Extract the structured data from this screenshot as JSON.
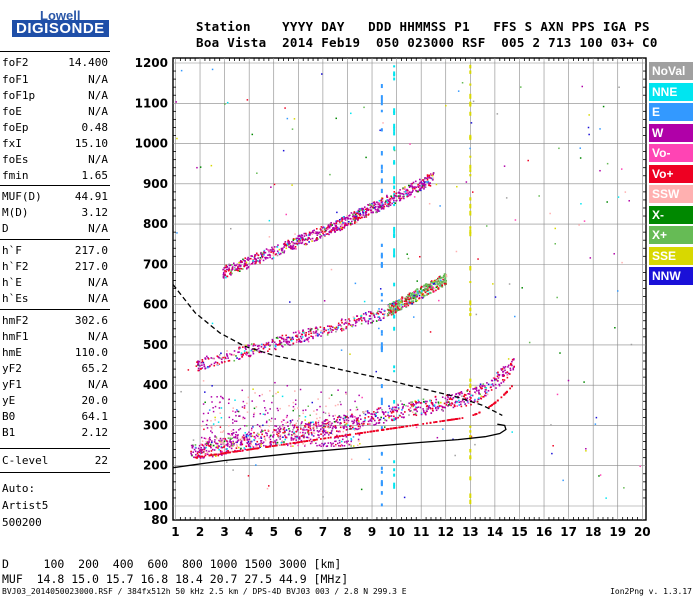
{
  "logo": {
    "line1": "Lowell",
    "line2": "DIGISONDE"
  },
  "header": {
    "line1": "Station    YYYY DAY   DDD HHMMSS P1   FFS S AXN PPS IGA PS",
    "line2": "Boa Vista  2014 Feb19  050 023000 RSF  005 2 713 100 03+ C0"
  },
  "params": [
    {
      "name": "foF2",
      "value": "14.400"
    },
    {
      "name": "foF1",
      "value": "N/A"
    },
    {
      "name": "foF1p",
      "value": "N/A"
    },
    {
      "name": "foE",
      "value": "N/A"
    },
    {
      "name": "foEp",
      "value": "0.48"
    },
    {
      "name": "fxI",
      "value": "15.10"
    },
    {
      "name": "foEs",
      "value": "N/A"
    },
    {
      "name": "fmin",
      "value": "1.65"
    },
    {
      "name": "MUF(D)",
      "value": "44.91"
    },
    {
      "name": "M(D)",
      "value": "3.12"
    },
    {
      "name": "D",
      "value": "N/A"
    },
    {
      "name": "h`F",
      "value": "217.0"
    },
    {
      "name": "h`F2",
      "value": "217.0"
    },
    {
      "name": "h`E",
      "value": "N/A"
    },
    {
      "name": "h`Es",
      "value": "N/A"
    },
    {
      "name": "hmF2",
      "value": "302.6"
    },
    {
      "name": "hmF1",
      "value": "N/A"
    },
    {
      "name": "hmE",
      "value": "110.0"
    },
    {
      "name": "yF2",
      "value": "65.2"
    },
    {
      "name": "yF1",
      "value": "N/A"
    },
    {
      "name": "yE",
      "value": "20.0"
    },
    {
      "name": "B0",
      "value": "64.1"
    },
    {
      "name": "B1",
      "value": "2.12"
    },
    {
      "name": "C-level",
      "value": "22"
    }
  ],
  "auto": {
    "line1": "Auto:",
    "line2": "Artist5",
    "line3": "500200"
  },
  "footer": {
    "d_line": "D     100  200  400  600  800 1000 1500 3000 [km]",
    "muf_line": "MUF  14.8 15.0 15.7 16.8 18.4 20.7 27.5 44.9 [MHz]",
    "file_line": "BVJ03_2014050023000.RSF / 384fx512h 50 kHz 2.5 km / DPS-4D BVJ03 003 / 2.8 N 299.3 E",
    "version": "Ion2Png v. 1.3.17"
  },
  "legend": [
    {
      "label": "NoVal",
      "color": "#a0a0a0"
    },
    {
      "label": "NNE",
      "color": "#00e5f0"
    },
    {
      "label": "E",
      "color": "#3399ff"
    },
    {
      "label": "W",
      "color": "#b000a8"
    },
    {
      "label": "Vo-",
      "color": "#ff44b4"
    },
    {
      "label": "Vo+",
      "color": "#ee0022"
    },
    {
      "label": "SSW",
      "color": "#ffb0b0"
    },
    {
      "label": "X-",
      "color": "#008800"
    },
    {
      "label": "X+",
      "color": "#66bb55"
    },
    {
      "label": "SSE",
      "color": "#d8d800"
    },
    {
      "label": "NNW",
      "color": "#1a10d8"
    }
  ],
  "chart_data": {
    "type": "scatter",
    "xlim": [
      1,
      20
    ],
    "ylim": [
      80,
      1200
    ],
    "x_ticks": [
      "1",
      "2",
      "3",
      "4",
      "5",
      "6",
      "7",
      "8",
      "9",
      "10",
      "11",
      "12",
      "13",
      "14",
      "15",
      "16",
      "17",
      "18",
      "19",
      "20"
    ],
    "y_ticks": [
      "80",
      "100",
      "200",
      "300",
      "400",
      "500",
      "600",
      "700",
      "800",
      "900",
      "1000",
      "1100",
      "1200"
    ],
    "grid": true,
    "traces": [
      {
        "name": "W",
        "color": "#b000a8",
        "x": [
          1.6,
          14.8
        ],
        "y": [
          225,
          385
        ]
      },
      {
        "name": "W",
        "color": "#b000a8",
        "x": [
          1.8,
          9.5
        ],
        "y": [
          445,
          575
        ]
      },
      {
        "name": "W",
        "color": "#b000a8",
        "x": [
          2.9,
          7.5
        ],
        "y": [
          675,
          790
        ]
      },
      {
        "name": "X+",
        "color": "#66bb55",
        "x": [
          9.6,
          12.0
        ],
        "y": [
          580,
          660
        ]
      },
      {
        "name": "W",
        "color": "#b000a8",
        "x": [
          7.5,
          11.5
        ],
        "y": [
          790,
          910
        ]
      }
    ],
    "profile_solid": {
      "x": [
        0.9,
        3,
        6,
        9,
        11,
        12.5,
        13.6,
        14.2,
        14.45,
        14.4,
        14.1
      ],
      "y": [
        195,
        213,
        232,
        248,
        258,
        265,
        272,
        280,
        290,
        300,
        303
      ]
    },
    "profile_dashed": {
      "x": [
        0.9,
        1.8,
        2.8,
        3.8,
        5,
        6.5,
        8,
        9.5,
        11,
        12.5,
        13.5,
        14.3
      ],
      "y": [
        650,
        580,
        530,
        497,
        474,
        455,
        435,
        415,
        392,
        370,
        350,
        325
      ]
    }
  }
}
